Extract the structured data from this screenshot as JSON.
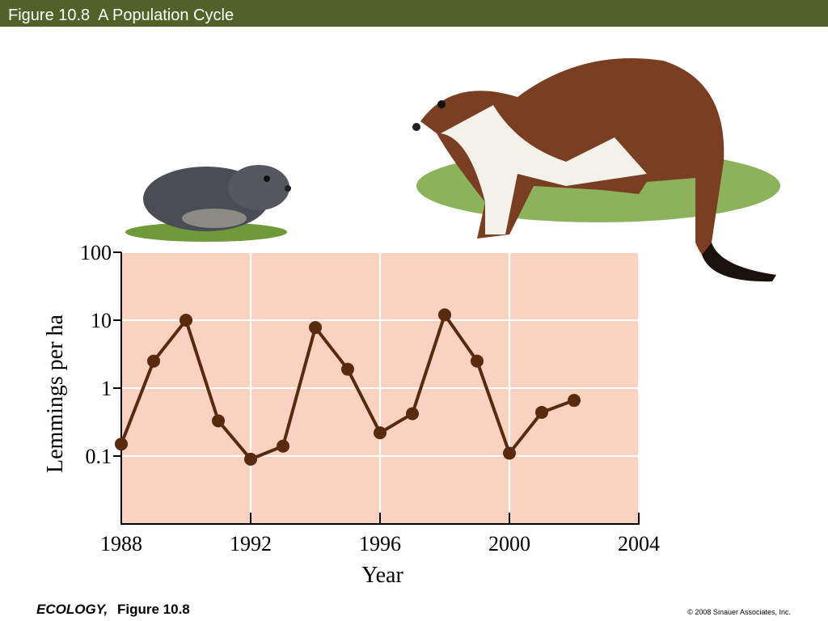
{
  "header": {
    "title": "Figure 10.8  A Population Cycle"
  },
  "footer": {
    "book": "ECOLOGY,",
    "figure": "Figure 10.8",
    "copyright": "© 2008 Sinauer Associates, Inc."
  },
  "chart_data": {
    "type": "line",
    "x": [
      1988,
      1989,
      1990,
      1991,
      1992,
      1993,
      1994,
      1995,
      1996,
      1997,
      1998,
      1999,
      2000,
      2001,
      2002
    ],
    "values": [
      0.15,
      2.5,
      10,
      0.33,
      0.09,
      0.14,
      7.8,
      1.9,
      0.22,
      0.42,
      12,
      2.5,
      0.11,
      0.44,
      0.66
    ],
    "color": "#5a2a0e",
    "xlabel": "Year",
    "ylabel": "Lemmings per ha",
    "xlim": [
      1988,
      2004
    ],
    "xticks": [
      1988,
      1992,
      1996,
      2000,
      2004
    ],
    "ylim": [
      0.01,
      100
    ],
    "yticks": [
      0.1,
      1,
      10,
      100
    ],
    "ylog": true,
    "grid": true,
    "background": "#f9d2c2"
  }
}
